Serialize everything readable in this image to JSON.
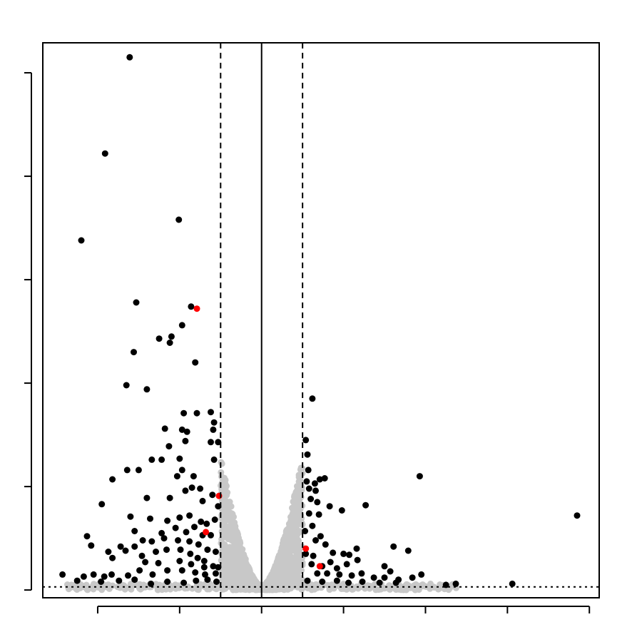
{
  "chart_data": {
    "type": "scatter",
    "title": "",
    "xlabel": "",
    "ylabel": "",
    "xlim": [
      -2.67,
      4.12
    ],
    "ylim": [
      -0.075,
      5.29
    ],
    "x_ticks": [
      -2,
      -1,
      0,
      1,
      2,
      3,
      4
    ],
    "y_ticks": [
      0,
      1,
      2,
      3,
      4,
      5
    ],
    "tick_labels_shown": false,
    "reference_lines": {
      "vertical_solid": 0,
      "vertical_dashed": [
        -0.5,
        0.5
      ],
      "horizontal_dotted": 0.03
    },
    "colors": {
      "not_significant": "#c8c8c8",
      "significant": "#000000",
      "highlighted": "#ff0000",
      "axes": "#000000"
    },
    "series": [
      {
        "role": "significant",
        "color": "#000000",
        "points": [
          [
            -1.61,
            5.15
          ],
          [
            -1.91,
            4.22
          ],
          [
            -2.2,
            3.38
          ],
          [
            -1.01,
            3.58
          ],
          [
            -1.53,
            2.78
          ],
          [
            -0.86,
            2.74
          ],
          [
            -1.56,
            2.3
          ],
          [
            -1.25,
            2.43
          ],
          [
            -1.12,
            2.39
          ],
          [
            -1.1,
            2.45
          ],
          [
            -0.97,
            2.56
          ],
          [
            -0.81,
            2.2
          ],
          [
            -1.65,
            1.98
          ],
          [
            -1.4,
            1.94
          ],
          [
            -0.95,
            1.71
          ],
          [
            -0.97,
            1.55
          ],
          [
            -0.79,
            1.71
          ],
          [
            -0.62,
            1.72
          ],
          [
            -0.58,
            1.62
          ],
          [
            -0.59,
            1.55
          ],
          [
            -1.18,
            1.56
          ],
          [
            -0.93,
            1.44
          ],
          [
            -0.91,
            1.53
          ],
          [
            -0.62,
            1.43
          ],
          [
            -0.53,
            1.43
          ],
          [
            -1.13,
            1.39
          ],
          [
            -1.22,
            1.26
          ],
          [
            -1.5,
            1.16
          ],
          [
            -1.34,
            1.26
          ],
          [
            -1.82,
            1.07
          ],
          [
            -1.0,
            1.27
          ],
          [
            -1.03,
            1.1
          ],
          [
            -0.97,
            1.16
          ],
          [
            -0.83,
            1.1
          ],
          [
            -0.58,
            1.26
          ],
          [
            -1.64,
            1.16
          ],
          [
            -1.95,
            0.83
          ],
          [
            -1.4,
            0.89
          ],
          [
            -1.12,
            0.89
          ],
          [
            -0.93,
            0.96
          ],
          [
            -0.85,
            0.99
          ],
          [
            -0.75,
            0.98
          ],
          [
            -0.72,
            0.86
          ],
          [
            -0.6,
            0.92
          ],
          [
            -0.53,
            0.81
          ],
          [
            -1.6,
            0.71
          ],
          [
            -1.36,
            0.69
          ],
          [
            -1.15,
            0.67
          ],
          [
            -1.0,
            0.7
          ],
          [
            -0.88,
            0.72
          ],
          [
            -0.74,
            0.66
          ],
          [
            -1.55,
            0.57
          ],
          [
            -1.22,
            0.55
          ],
          [
            -1.05,
            0.6
          ],
          [
            -0.92,
            0.56
          ],
          [
            -0.82,
            0.61
          ],
          [
            -2.13,
            0.52
          ],
          [
            -1.72,
            0.42
          ],
          [
            -1.55,
            0.42
          ],
          [
            -1.45,
            0.48
          ],
          [
            -1.34,
            0.47
          ],
          [
            -1.19,
            0.5
          ],
          [
            -1.02,
            0.48
          ],
          [
            -0.88,
            0.47
          ],
          [
            -0.77,
            0.44
          ],
          [
            -1.87,
            0.37
          ],
          [
            -1.66,
            0.38
          ],
          [
            -1.46,
            0.33
          ],
          [
            -1.29,
            0.37
          ],
          [
            -1.16,
            0.39
          ],
          [
            -0.99,
            0.39
          ],
          [
            -0.87,
            0.35
          ],
          [
            -2.08,
            0.43
          ],
          [
            -1.82,
            0.31
          ],
          [
            -1.42,
            0.27
          ],
          [
            -1.26,
            0.26
          ],
          [
            -1.0,
            0.28
          ],
          [
            -0.86,
            0.25
          ],
          [
            -0.78,
            0.31
          ],
          [
            -0.7,
            0.28
          ],
          [
            -2.43,
            0.15
          ],
          [
            -2.17,
            0.13
          ],
          [
            -2.05,
            0.15
          ],
          [
            -1.92,
            0.13
          ],
          [
            -1.83,
            0.15
          ],
          [
            -1.63,
            0.14
          ],
          [
            -1.49,
            0.19
          ],
          [
            -1.33,
            0.15
          ],
          [
            -1.15,
            0.19
          ],
          [
            -0.97,
            0.19
          ],
          [
            -0.81,
            0.17
          ],
          [
            -0.69,
            0.15
          ],
          [
            -0.56,
            0.16
          ],
          [
            -2.25,
            0.09
          ],
          [
            -1.96,
            0.08
          ],
          [
            -1.74,
            0.09
          ],
          [
            -1.55,
            0.1
          ],
          [
            -1.35,
            0.06
          ],
          [
            -1.15,
            0.08
          ],
          [
            -0.95,
            0.07
          ],
          [
            -0.8,
            0.09
          ],
          [
            -0.66,
            0.1
          ],
          [
            -0.55,
            0.08
          ],
          [
            -0.62,
            0.53
          ],
          [
            -0.67,
            0.64
          ],
          [
            -0.57,
            0.68
          ],
          [
            -0.72,
            0.53
          ],
          [
            -0.56,
            0.37
          ],
          [
            -0.66,
            0.39
          ],
          [
            -0.7,
            0.22
          ],
          [
            -0.59,
            0.23
          ],
          [
            -0.53,
            0.22
          ],
          [
            0.62,
            1.85
          ],
          [
            0.54,
            1.45
          ],
          [
            0.57,
            1.16
          ],
          [
            0.55,
            1.05
          ],
          [
            0.65,
            1.03
          ],
          [
            0.71,
            1.07
          ],
          [
            0.77,
            1.08
          ],
          [
            0.66,
            0.96
          ],
          [
            0.83,
            0.81
          ],
          [
            0.98,
            0.77
          ],
          [
            1.27,
            0.82
          ],
          [
            1.93,
            1.1
          ],
          [
            3.85,
            0.72
          ],
          [
            0.58,
            0.74
          ],
          [
            0.7,
            0.73
          ],
          [
            0.62,
            0.62
          ],
          [
            0.72,
            0.52
          ],
          [
            0.66,
            0.48
          ],
          [
            0.78,
            0.44
          ],
          [
            0.87,
            0.36
          ],
          [
            0.54,
            0.35
          ],
          [
            0.63,
            0.33
          ],
          [
            1.0,
            0.35
          ],
          [
            1.07,
            0.34
          ],
          [
            1.16,
            0.4
          ],
          [
            1.61,
            0.42
          ],
          [
            1.79,
            0.38
          ],
          [
            0.61,
            0.25
          ],
          [
            0.74,
            0.23
          ],
          [
            0.84,
            0.27
          ],
          [
            0.92,
            0.21
          ],
          [
            1.04,
            0.25
          ],
          [
            1.17,
            0.29
          ],
          [
            1.5,
            0.23
          ],
          [
            1.57,
            0.18
          ],
          [
            0.68,
            0.16
          ],
          [
            0.8,
            0.16
          ],
          [
            0.95,
            0.15
          ],
          [
            1.1,
            0.14
          ],
          [
            1.22,
            0.16
          ],
          [
            1.37,
            0.12
          ],
          [
            1.5,
            0.12
          ],
          [
            1.67,
            0.1
          ],
          [
            1.84,
            0.12
          ],
          [
            1.95,
            0.15
          ],
          [
            2.25,
            0.05
          ],
          [
            2.37,
            0.06
          ],
          [
            3.06,
            0.06
          ],
          [
            0.56,
            0.09
          ],
          [
            0.74,
            0.08
          ],
          [
            0.92,
            0.09
          ],
          [
            1.06,
            0.07
          ],
          [
            1.23,
            0.08
          ],
          [
            1.44,
            0.07
          ],
          [
            1.64,
            0.07
          ],
          [
            0.53,
            0.57
          ],
          [
            0.6,
            0.88
          ],
          [
            0.56,
            1.31
          ],
          [
            0.68,
            0.85
          ],
          [
            0.58,
            0.98
          ]
        ]
      },
      {
        "role": "highlighted",
        "color": "#ff0000",
        "points": [
          [
            -0.79,
            2.72
          ],
          [
            -0.52,
            0.91
          ],
          [
            -0.68,
            0.56
          ],
          [
            0.54,
            0.4
          ],
          [
            0.71,
            0.23
          ]
        ]
      }
    ]
  }
}
